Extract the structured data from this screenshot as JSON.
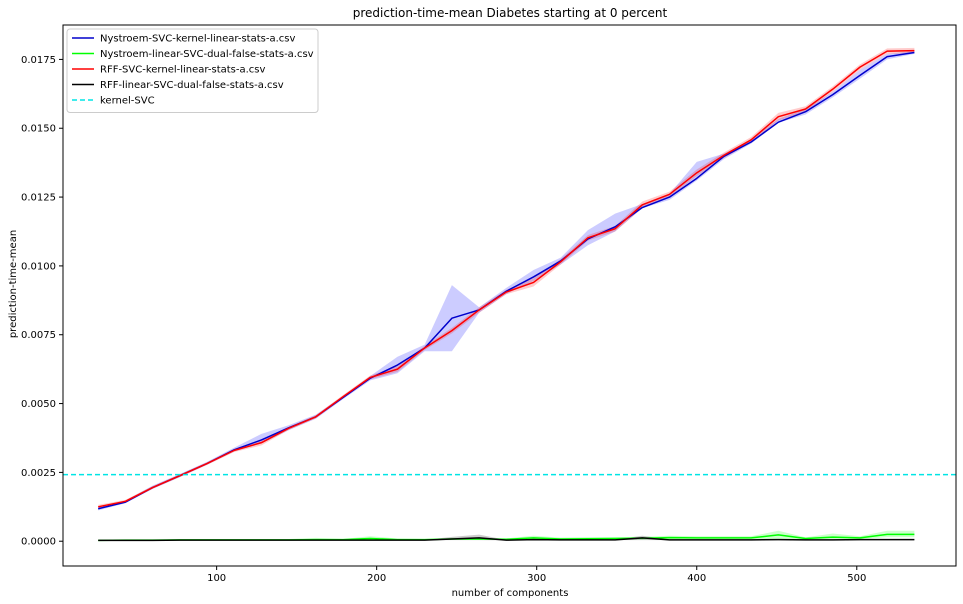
{
  "chart_data": {
    "type": "line",
    "title": "prediction-time-mean Diabetes starting at 0 percent",
    "xlabel": "number of components",
    "ylabel": "prediction-time-mean",
    "xlim": [
      4,
      562
    ],
    "ylim": [
      -0.0009,
      0.01875
    ],
    "xticks": [
      100,
      200,
      300,
      400,
      500
    ],
    "xtick_labels": [
      "100",
      "200",
      "300",
      "400",
      "500"
    ],
    "yticks": [
      0.0,
      0.0025,
      0.005,
      0.0075,
      0.01,
      0.0125,
      0.015,
      0.0175
    ],
    "ytick_labels": [
      "0.0000",
      "0.0025",
      "0.0050",
      "0.0075",
      "0.0100",
      "0.0125",
      "0.0150",
      "0.0175"
    ],
    "grid": false,
    "legend_position": "top-left",
    "x": [
      26,
      43,
      60,
      77,
      94,
      111,
      128,
      145,
      162,
      179,
      196,
      213,
      230,
      247,
      264,
      281,
      298,
      315,
      332,
      349,
      366,
      383,
      400,
      417,
      434,
      451,
      468,
      485,
      502,
      519,
      536
    ],
    "series": [
      {
        "name": "Nystroem-SVC-kernel-linear-stats-a.csv",
        "color": "#0000cc",
        "band_color": "#0000ff",
        "values": [
          0.00118,
          0.00142,
          0.00195,
          0.00238,
          0.00282,
          0.00332,
          0.00368,
          0.00412,
          0.00452,
          0.00522,
          0.00592,
          0.0064,
          0.00702,
          0.0081,
          0.0084,
          0.00908,
          0.0096,
          0.01018,
          0.01098,
          0.01142,
          0.01212,
          0.0125,
          0.01318,
          0.01398,
          0.0145,
          0.01522,
          0.0156,
          0.01622,
          0.01692,
          0.0176,
          0.01775
        ],
        "lower": [
          0.00112,
          0.00138,
          0.0019,
          0.00233,
          0.00278,
          0.00326,
          0.00355,
          0.00403,
          0.00445,
          0.00516,
          0.00584,
          0.0061,
          0.0069,
          0.0069,
          0.0083,
          0.00898,
          0.00945,
          0.01005,
          0.01075,
          0.01125,
          0.0121,
          0.0124,
          0.0131,
          0.01388,
          0.01444,
          0.0152,
          0.0155,
          0.01612,
          0.0168,
          0.0175,
          0.0177
        ],
        "upper": [
          0.00124,
          0.00148,
          0.00202,
          0.00244,
          0.00288,
          0.0034,
          0.0039,
          0.00421,
          0.0046,
          0.00528,
          0.006,
          0.0067,
          0.00714,
          0.0093,
          0.0085,
          0.0092,
          0.00985,
          0.0103,
          0.0113,
          0.0119,
          0.01225,
          0.01262,
          0.01378,
          0.01408,
          0.01458,
          0.01534,
          0.0157,
          0.01632,
          0.01712,
          0.0177,
          0.0178
        ]
      },
      {
        "name": "Nystroem-linear-SVC-dual-false-stats-a.csv",
        "color": "#00ff00",
        "band_color": "#00ff00",
        "values": [
          3e-05,
          4e-05,
          4e-05,
          5e-05,
          5e-05,
          5e-05,
          5e-05,
          5e-05,
          6e-05,
          6e-05,
          0.0001,
          6e-05,
          6e-05,
          8e-05,
          8e-05,
          7e-05,
          0.00012,
          8e-05,
          9e-05,
          0.0001,
          0.00011,
          0.00013,
          0.00012,
          0.00012,
          0.00012,
          0.00023,
          0.0001,
          0.00015,
          0.00012,
          0.00025,
          0.00025
        ],
        "lower": [
          2e-05,
          3e-05,
          3e-05,
          4e-05,
          4e-05,
          4e-05,
          4e-05,
          4e-05,
          4e-05,
          4e-05,
          4e-05,
          4e-05,
          4e-05,
          5e-05,
          5e-05,
          5e-05,
          5e-05,
          5e-05,
          5e-05,
          6e-05,
          6e-05,
          7e-05,
          7e-05,
          7e-05,
          7e-05,
          8e-05,
          6e-05,
          7e-05,
          7e-05,
          0.00015,
          0.00015
        ],
        "upper": [
          5e-05,
          6e-05,
          6e-05,
          7e-05,
          7e-05,
          7e-05,
          8e-05,
          8e-05,
          0.00012,
          8e-05,
          0.00018,
          0.0001,
          8e-05,
          0.00012,
          0.00012,
          0.0001,
          0.0002,
          0.00013,
          0.00015,
          0.00015,
          0.00016,
          0.0002,
          0.00018,
          0.00018,
          0.00018,
          0.00038,
          0.00014,
          0.00028,
          0.00018,
          0.00038,
          0.00038
        ]
      },
      {
        "name": "RFF-SVC-kernel-linear-stats-a.csv",
        "color": "#ff0000",
        "band_color": "#ff0000",
        "values": [
          0.00125,
          0.00145,
          0.00195,
          0.00238,
          0.00282,
          0.0033,
          0.00358,
          0.0041,
          0.00452,
          0.00525,
          0.00595,
          0.00625,
          0.00702,
          0.00765,
          0.0084,
          0.00905,
          0.0094,
          0.01015,
          0.01102,
          0.01135,
          0.01222,
          0.0126,
          0.01338,
          0.01402,
          0.01458,
          0.01542,
          0.0157,
          0.01642,
          0.01722,
          0.0178,
          0.01782
        ],
        "lower": [
          0.00118,
          0.0014,
          0.0019,
          0.00233,
          0.00277,
          0.00324,
          0.00348,
          0.00404,
          0.00446,
          0.00519,
          0.00588,
          0.00615,
          0.00694,
          0.00755,
          0.0083,
          0.00897,
          0.00925,
          0.01005,
          0.01092,
          0.01125,
          0.0121,
          0.0125,
          0.01326,
          0.01392,
          0.01448,
          0.01528,
          0.0156,
          0.01632,
          0.01712,
          0.0177,
          0.01772
        ],
        "upper": [
          0.00132,
          0.0015,
          0.002,
          0.00243,
          0.00287,
          0.00336,
          0.00368,
          0.00416,
          0.00458,
          0.00531,
          0.00602,
          0.00635,
          0.0071,
          0.00775,
          0.0085,
          0.00913,
          0.00955,
          0.01025,
          0.01112,
          0.01145,
          0.01234,
          0.0127,
          0.0135,
          0.01412,
          0.01468,
          0.01556,
          0.0158,
          0.01652,
          0.01732,
          0.0179,
          0.01792
        ]
      },
      {
        "name": "RFF-linear-SVC-dual-false-stats-a.csv",
        "color": "#000000",
        "band_color": "#000000",
        "values": [
          3e-05,
          3e-05,
          3e-05,
          4e-05,
          4e-05,
          4e-05,
          4e-05,
          4e-05,
          4e-05,
          4e-05,
          4e-05,
          4e-05,
          4e-05,
          8e-05,
          0.00012,
          4e-05,
          6e-05,
          5e-05,
          5e-05,
          5e-05,
          0.00012,
          5e-05,
          5e-05,
          5e-05,
          5e-05,
          6e-05,
          5e-05,
          5e-05,
          6e-05,
          6e-05,
          6e-05
        ],
        "lower": [
          2e-05,
          2e-05,
          2e-05,
          3e-05,
          3e-05,
          3e-05,
          3e-05,
          3e-05,
          3e-05,
          3e-05,
          3e-05,
          3e-05,
          3e-05,
          4e-05,
          4e-05,
          3e-05,
          4e-05,
          4e-05,
          4e-05,
          4e-05,
          4e-05,
          4e-05,
          4e-05,
          4e-05,
          4e-05,
          4e-05,
          4e-05,
          4e-05,
          4e-05,
          4e-05,
          4e-05
        ],
        "upper": [
          4e-05,
          4e-05,
          4e-05,
          5e-05,
          5e-05,
          5e-05,
          5e-05,
          5e-05,
          5e-05,
          5e-05,
          5e-05,
          5e-05,
          5e-05,
          0.00016,
          0.00024,
          5e-05,
          0.0001,
          6e-05,
          6e-05,
          6e-05,
          0.0002,
          6e-05,
          6e-05,
          6e-05,
          6e-05,
          8e-05,
          6e-05,
          6e-05,
          8e-05,
          8e-05,
          8e-05
        ]
      }
    ],
    "reference_line": {
      "name": "kernel-SVC",
      "value": 0.00242,
      "color": "#00e5e5",
      "style": "dashed"
    }
  }
}
